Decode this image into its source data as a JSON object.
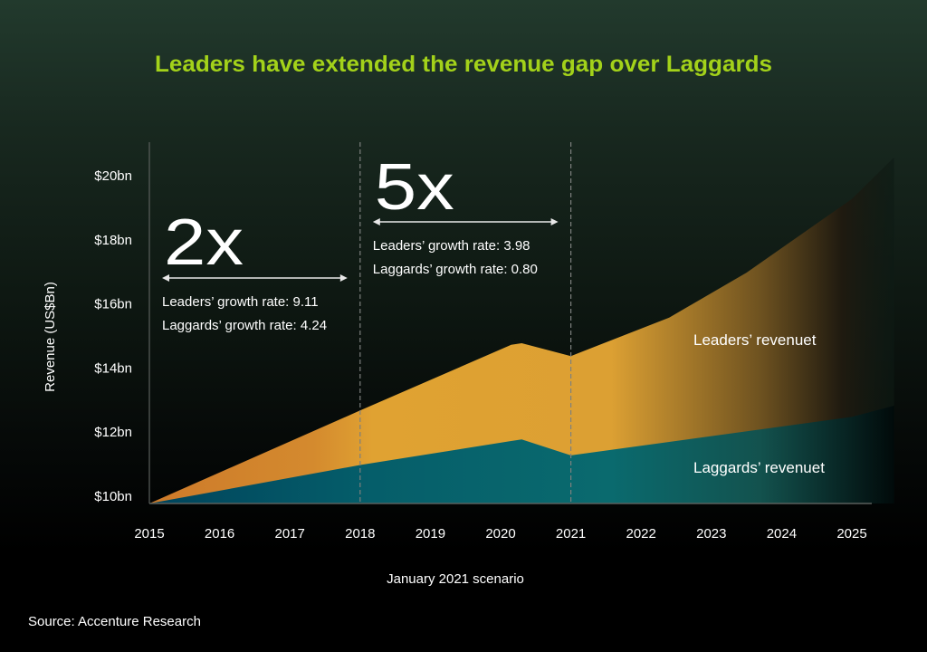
{
  "chart_data": {
    "type": "area",
    "title": "Leaders have extended the revenue gap over Laggards",
    "xlabel": "January 2021 scenario",
    "ylabel": "Revenue (US$Bn)",
    "x_ticks": [
      "2015",
      "2016",
      "2017",
      "2018",
      "2019",
      "2020",
      "2021",
      "2022",
      "2023",
      "2024",
      "2025"
    ],
    "y_ticks": [
      {
        "value": 10,
        "label": "$10bn"
      },
      {
        "value": 12,
        "label": "$12bn"
      },
      {
        "value": 14,
        "label": "$14bn"
      },
      {
        "value": 16,
        "label": "$16bn"
      },
      {
        "value": 18,
        "label": "$18bn"
      },
      {
        "value": 20,
        "label": "$20bn"
      }
    ],
    "xlim": [
      2015,
      2025.6
    ],
    "ylim": [
      10,
      21
    ],
    "grid": false,
    "series": [
      {
        "name": "Leaders' revenuet",
        "color": "#e0a232",
        "points": [
          [
            2015,
            10.0
          ],
          [
            2018,
            12.9
          ],
          [
            2020.15,
            14.95
          ],
          [
            2020.3,
            15.0
          ],
          [
            2021,
            14.6
          ],
          [
            2022.4,
            15.8
          ],
          [
            2023.5,
            17.2
          ],
          [
            2025,
            19.5
          ],
          [
            2025.6,
            20.8
          ]
        ]
      },
      {
        "name": "Laggards' revenuet",
        "color": "#05666e",
        "points": [
          [
            2015,
            10.0
          ],
          [
            2018,
            11.2
          ],
          [
            2020.15,
            11.95
          ],
          [
            2020.3,
            12.0
          ],
          [
            2021,
            11.5
          ],
          [
            2025,
            12.7
          ],
          [
            2025.6,
            13.05
          ]
        ]
      }
    ],
    "annotations": [
      {
        "id": "period1",
        "from": 2015,
        "to": 2018,
        "multiple": "2x",
        "lines": [
          "Leaders’ growth rate: 9.11",
          "Laggards’ growth rate: 4.24"
        ]
      },
      {
        "id": "period2",
        "from": 2018,
        "to": 2021,
        "multiple": "5x",
        "lines": [
          "Leaders’ growth rate: 3.98",
          "Laggards’ growth rate: 0.80"
        ]
      }
    ],
    "reference_lines_x": [
      2018,
      2021
    ],
    "series_labels": [
      "Leaders’ revenuet",
      "Laggards’ revenuet"
    ],
    "source": "Source: Accenture Research",
    "title_color": "#a3d21a"
  }
}
